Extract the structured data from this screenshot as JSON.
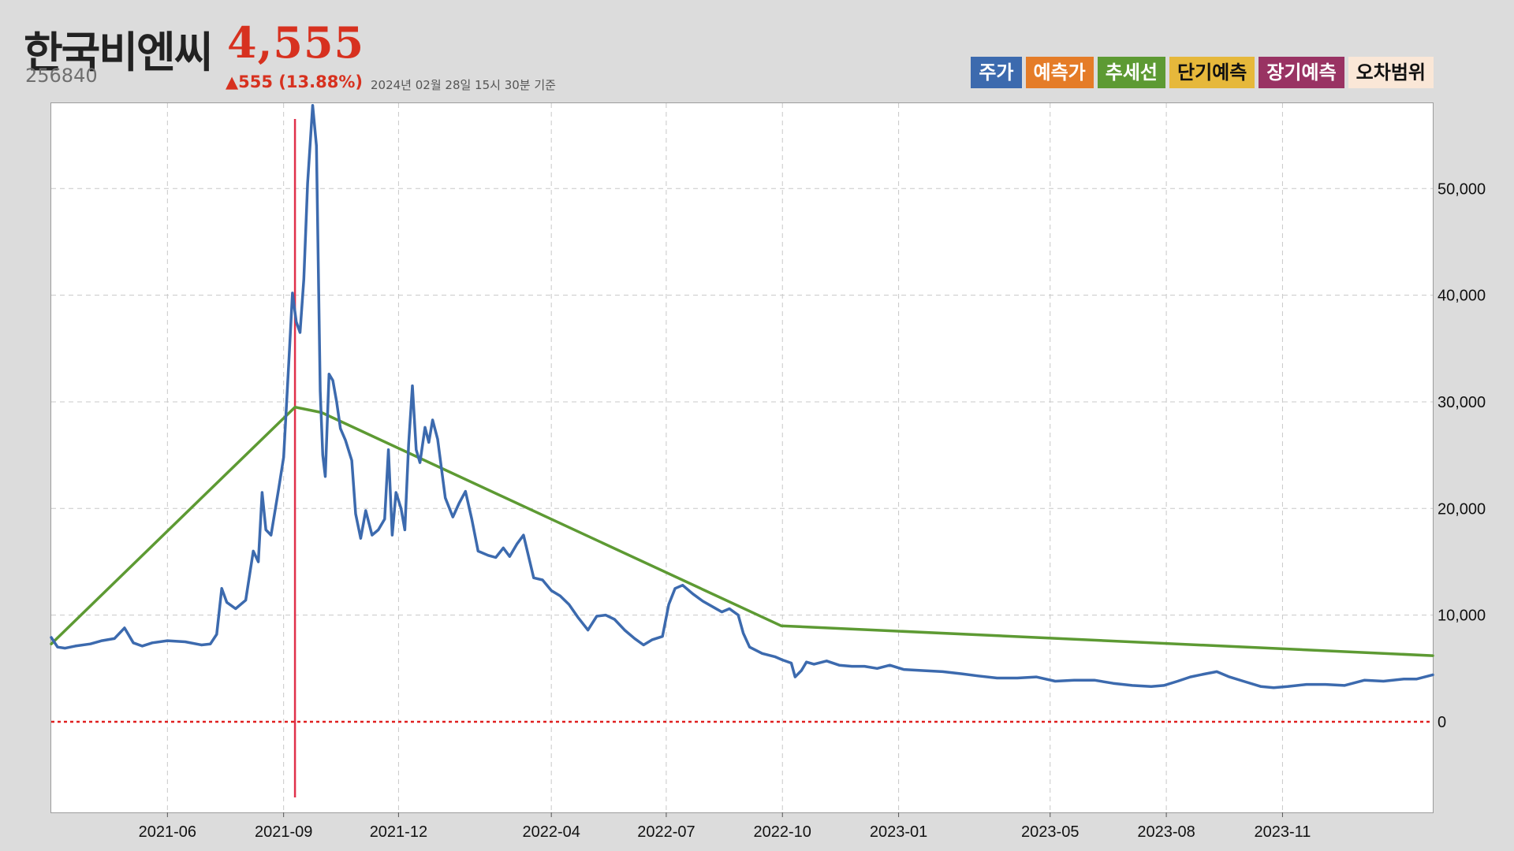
{
  "header": {
    "name": "한국비엔씨",
    "code": "256840",
    "price": "4,555",
    "change": "▲555 (13.88%)",
    "as_of": "2024년 02월 28일 15시 30분 기준"
  },
  "legend": [
    {
      "label": "주가",
      "color": "#3c6aae",
      "text_color": "#ffffff"
    },
    {
      "label": "예측가",
      "color": "#e57c28",
      "text_color": "#ffffff"
    },
    {
      "label": "추세선",
      "color": "#5d9a33",
      "text_color": "#ffffff"
    },
    {
      "label": "단기예측",
      "color": "#e6b83b",
      "text_color": "#111111"
    },
    {
      "label": "장기예측",
      "color": "#993363",
      "text_color": "#ffffff"
    },
    {
      "label": "오차범위",
      "color": "#fae7d7",
      "text_color": "#111111"
    }
  ],
  "chart_data": {
    "type": "line",
    "x_type": "date",
    "xlim": [
      "2021-03-01",
      "2024-02-28"
    ],
    "ylim": [
      -8500,
      58000
    ],
    "y_ticks": [
      0,
      10000,
      20000,
      30000,
      40000,
      50000
    ],
    "y_tick_labels": [
      "0",
      "10,000",
      "20,000",
      "30,000",
      "40,000",
      "50,000"
    ],
    "x_ticks": [
      "2021-06-01",
      "2021-09-01",
      "2021-12-01",
      "2022-04-01",
      "2022-07-01",
      "2022-10-01",
      "2023-01-01",
      "2023-05-01",
      "2023-08-01",
      "2023-11-01"
    ],
    "x_tick_labels": [
      "2021-06",
      "2021-09",
      "2021-12",
      "2022-04",
      "2022-07",
      "2022-10",
      "2023-01",
      "2023-05",
      "2023-08",
      "2023-11"
    ],
    "grid": true,
    "axis_position": "right",
    "colors": {
      "price": "#3c6aae",
      "trend": "#5d9a33",
      "marker": "#e0314b",
      "zero": "#e02020"
    },
    "marker_date": "2021-09-10",
    "zero_line": 0,
    "series": [
      {
        "name": "주가",
        "points": [
          [
            "2021-03-01",
            7900
          ],
          [
            "2021-03-06",
            7000
          ],
          [
            "2021-03-12",
            6900
          ],
          [
            "2021-03-20",
            7100
          ],
          [
            "2021-04-01",
            7300
          ],
          [
            "2021-04-10",
            7600
          ],
          [
            "2021-04-20",
            7800
          ],
          [
            "2021-04-28",
            8800
          ],
          [
            "2021-05-05",
            7400
          ],
          [
            "2021-05-12",
            7100
          ],
          [
            "2021-05-20",
            7400
          ],
          [
            "2021-06-01",
            7600
          ],
          [
            "2021-06-15",
            7500
          ],
          [
            "2021-06-28",
            7200
          ],
          [
            "2021-07-05",
            7300
          ],
          [
            "2021-07-10",
            8200
          ],
          [
            "2021-07-14",
            12500
          ],
          [
            "2021-07-18",
            11200
          ],
          [
            "2021-07-25",
            10600
          ],
          [
            "2021-08-02",
            11400
          ],
          [
            "2021-08-08",
            16000
          ],
          [
            "2021-08-12",
            15000
          ],
          [
            "2021-08-15",
            21500
          ],
          [
            "2021-08-18",
            18000
          ],
          [
            "2021-08-22",
            17500
          ],
          [
            "2021-08-28",
            21800
          ],
          [
            "2021-09-01",
            24800
          ],
          [
            "2021-09-05",
            33500
          ],
          [
            "2021-09-08",
            40200
          ],
          [
            "2021-09-11",
            37500
          ],
          [
            "2021-09-14",
            36500
          ],
          [
            "2021-09-17",
            41500
          ],
          [
            "2021-09-20",
            50500
          ],
          [
            "2021-09-24",
            57800
          ],
          [
            "2021-09-27",
            54000
          ],
          [
            "2021-09-30",
            31000
          ],
          [
            "2021-10-02",
            25000
          ],
          [
            "2021-10-04",
            23000
          ],
          [
            "2021-10-07",
            32600
          ],
          [
            "2021-10-10",
            32000
          ],
          [
            "2021-10-13",
            30000
          ],
          [
            "2021-10-16",
            27500
          ],
          [
            "2021-10-20",
            26400
          ],
          [
            "2021-10-25",
            24500
          ],
          [
            "2021-10-28",
            19500
          ],
          [
            "2021-11-01",
            17200
          ],
          [
            "2021-11-05",
            19800
          ],
          [
            "2021-11-10",
            17500
          ],
          [
            "2021-11-15",
            18000
          ],
          [
            "2021-11-20",
            19000
          ],
          [
            "2021-11-23",
            25500
          ],
          [
            "2021-11-26",
            17500
          ],
          [
            "2021-11-29",
            21500
          ],
          [
            "2021-12-03",
            20000
          ],
          [
            "2021-12-06",
            18000
          ],
          [
            "2021-12-09",
            26000
          ],
          [
            "2021-12-12",
            31500
          ],
          [
            "2021-12-15",
            25500
          ],
          [
            "2021-12-18",
            24300
          ],
          [
            "2021-12-22",
            27600
          ],
          [
            "2021-12-25",
            26200
          ],
          [
            "2021-12-28",
            28300
          ],
          [
            "2022-01-01",
            26500
          ],
          [
            "2022-01-07",
            21000
          ],
          [
            "2022-01-13",
            19200
          ],
          [
            "2022-01-18",
            20500
          ],
          [
            "2022-01-23",
            21600
          ],
          [
            "2022-01-28",
            19000
          ],
          [
            "2022-02-02",
            16000
          ],
          [
            "2022-02-10",
            15600
          ],
          [
            "2022-02-16",
            15400
          ],
          [
            "2022-02-22",
            16300
          ],
          [
            "2022-02-27",
            15500
          ],
          [
            "2022-03-05",
            16700
          ],
          [
            "2022-03-10",
            17500
          ],
          [
            "2022-03-18",
            13500
          ],
          [
            "2022-03-25",
            13300
          ],
          [
            "2022-04-01",
            12300
          ],
          [
            "2022-04-08",
            11800
          ],
          [
            "2022-04-15",
            11000
          ],
          [
            "2022-04-22",
            9800
          ],
          [
            "2022-04-30",
            8600
          ],
          [
            "2022-05-07",
            9900
          ],
          [
            "2022-05-14",
            10000
          ],
          [
            "2022-05-21",
            9600
          ],
          [
            "2022-05-29",
            8600
          ],
          [
            "2022-06-06",
            7800
          ],
          [
            "2022-06-13",
            7200
          ],
          [
            "2022-06-20",
            7700
          ],
          [
            "2022-06-28",
            8000
          ],
          [
            "2022-07-03",
            11000
          ],
          [
            "2022-07-08",
            12500
          ],
          [
            "2022-07-14",
            12800
          ],
          [
            "2022-07-22",
            12000
          ],
          [
            "2022-07-30",
            11300
          ],
          [
            "2022-08-08",
            10700
          ],
          [
            "2022-08-14",
            10300
          ],
          [
            "2022-08-20",
            10600
          ],
          [
            "2022-08-27",
            10000
          ],
          [
            "2022-08-31",
            8300
          ],
          [
            "2022-09-05",
            7000
          ],
          [
            "2022-09-15",
            6400
          ],
          [
            "2022-09-25",
            6100
          ],
          [
            "2022-10-01",
            5800
          ],
          [
            "2022-10-08",
            5500
          ],
          [
            "2022-10-11",
            4200
          ],
          [
            "2022-10-16",
            4800
          ],
          [
            "2022-10-20",
            5600
          ],
          [
            "2022-10-26",
            5400
          ],
          [
            "2022-11-05",
            5700
          ],
          [
            "2022-11-15",
            5300
          ],
          [
            "2022-11-25",
            5200
          ],
          [
            "2022-12-05",
            5200
          ],
          [
            "2022-12-15",
            5000
          ],
          [
            "2022-12-25",
            5300
          ],
          [
            "2023-01-05",
            4900
          ],
          [
            "2023-01-20",
            4800
          ],
          [
            "2023-02-05",
            4700
          ],
          [
            "2023-02-20",
            4500
          ],
          [
            "2023-03-05",
            4300
          ],
          [
            "2023-03-20",
            4100
          ],
          [
            "2023-04-05",
            4100
          ],
          [
            "2023-04-20",
            4200
          ],
          [
            "2023-05-05",
            3800
          ],
          [
            "2023-05-20",
            3900
          ],
          [
            "2023-06-05",
            3900
          ],
          [
            "2023-06-20",
            3600
          ],
          [
            "2023-07-05",
            3400
          ],
          [
            "2023-07-20",
            3300
          ],
          [
            "2023-07-30",
            3400
          ],
          [
            "2023-08-10",
            3800
          ],
          [
            "2023-08-20",
            4200
          ],
          [
            "2023-09-01",
            4500
          ],
          [
            "2023-09-10",
            4700
          ],
          [
            "2023-09-20",
            4200
          ],
          [
            "2023-10-01",
            3800
          ],
          [
            "2023-10-15",
            3300
          ],
          [
            "2023-10-25",
            3200
          ],
          [
            "2023-11-05",
            3300
          ],
          [
            "2023-11-20",
            3500
          ],
          [
            "2023-12-05",
            3500
          ],
          [
            "2023-12-20",
            3400
          ],
          [
            "2024-01-05",
            3900
          ],
          [
            "2024-01-20",
            3800
          ],
          [
            "2024-02-05",
            4000
          ],
          [
            "2024-02-15",
            4000
          ],
          [
            "2024-02-28",
            4400
          ]
        ]
      },
      {
        "name": "추세선",
        "points": [
          [
            "2021-03-01",
            7300
          ],
          [
            "2021-09-10",
            29500
          ],
          [
            "2021-10-01",
            29000
          ],
          [
            "2022-09-30",
            9000
          ],
          [
            "2024-02-28",
            6200
          ]
        ]
      }
    ]
  }
}
